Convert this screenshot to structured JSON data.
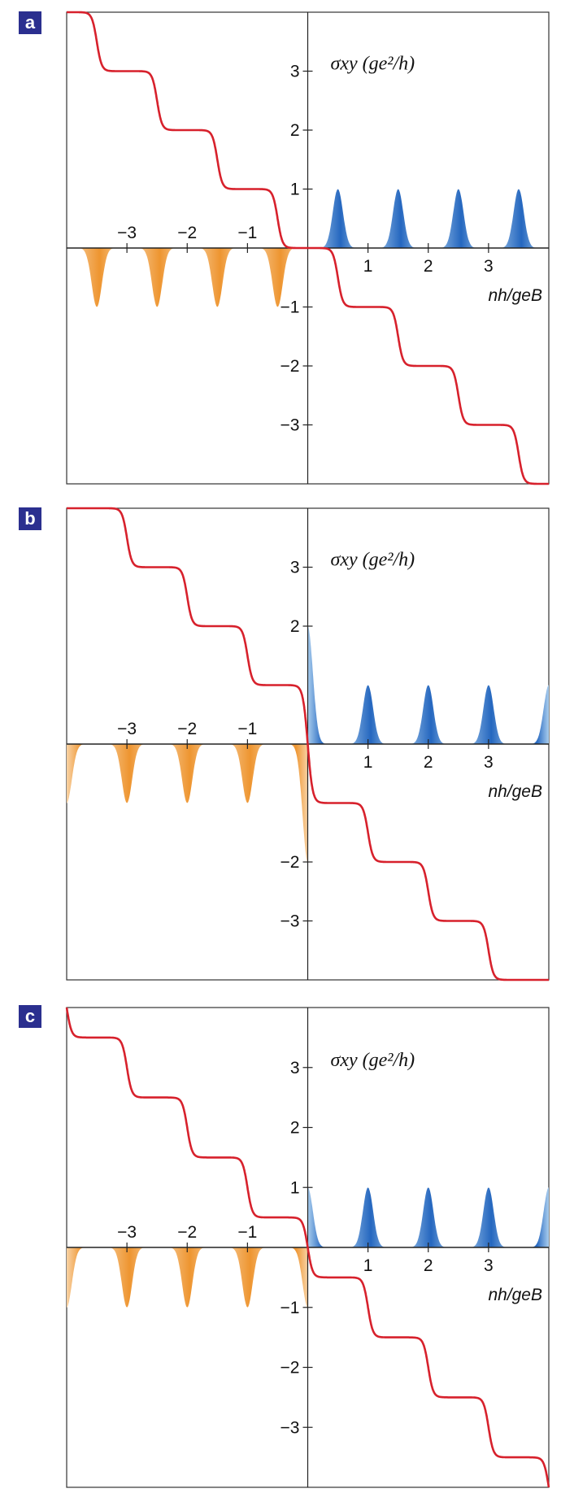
{
  "chart_data": [
    {
      "panel_label": "a",
      "type": "line",
      "ylabel": "σxy (ge²/h)",
      "xlabel": "nh/geB",
      "xlim": [
        -4,
        4
      ],
      "ylim": [
        -4,
        4
      ],
      "x_ticks": [
        "−3",
        "−2",
        "−1",
        "1",
        "2",
        "3"
      ],
      "y_ticks": [
        "3",
        "2",
        "1",
        "−1",
        "−2",
        "−3"
      ],
      "series": [
        {
          "kind": "hall-steps",
          "x": [
            -3.5,
            -2.5,
            -1.5,
            -0.5,
            0.5,
            1.5,
            2.5,
            3.5
          ],
          "plateaus": [
            4,
            3,
            2,
            1,
            0,
            -1,
            -2,
            -3,
            -4
          ],
          "color": "#d7212c"
        },
        {
          "kind": "dos-peaks-electron",
          "x": [
            0.5,
            1.5,
            2.5,
            3.5
          ],
          "heights": [
            1,
            1,
            1,
            1
          ],
          "color": "#2f78c8"
        },
        {
          "kind": "dos-peaks-hole",
          "x": [
            -3.5,
            -2.5,
            -1.5,
            -0.5
          ],
          "heights": [
            -1,
            -1,
            -1,
            -1
          ],
          "color": "#f0a040"
        }
      ]
    },
    {
      "panel_label": "b",
      "type": "line",
      "ylabel": "σxy (ge²/h)",
      "xlabel": "nh/geB",
      "xlim": [
        -4,
        4
      ],
      "ylim": [
        -4,
        4
      ],
      "x_ticks": [
        "−3",
        "−2",
        "−1",
        "1",
        "2",
        "3"
      ],
      "y_ticks": [
        "3",
        "2",
        "−2",
        "−3"
      ],
      "series": [
        {
          "kind": "hall-steps",
          "x": [
            -3,
            -2,
            -1,
            0,
            1,
            2,
            3
          ],
          "plateaus": [
            4,
            3,
            2,
            1,
            -1,
            -2,
            -3,
            -4
          ],
          "color": "#d7212c"
        },
        {
          "kind": "dos-peaks-electron",
          "x": [
            0,
            1,
            2,
            3,
            4
          ],
          "heights": [
            2,
            1,
            1,
            1,
            1
          ],
          "color": "#2f78c8"
        },
        {
          "kind": "dos-peaks-hole",
          "x": [
            -4,
            -3,
            -2,
            -1,
            0
          ],
          "heights": [
            -1,
            -1,
            -1,
            -1,
            -2
          ],
          "color": "#f0a040"
        }
      ]
    },
    {
      "panel_label": "c",
      "type": "line",
      "ylabel": "σxy (ge²/h)",
      "xlabel": "nh/geB",
      "xlim": [
        -4,
        4
      ],
      "ylim": [
        -4,
        4
      ],
      "x_ticks": [
        "−3",
        "−2",
        "−1",
        "1",
        "2",
        "3"
      ],
      "y_ticks": [
        "3",
        "2",
        "1",
        "−1",
        "−2",
        "−3"
      ],
      "series": [
        {
          "kind": "hall-steps",
          "x": [
            -4,
            -3,
            -2,
            -1,
            0,
            1,
            2,
            3,
            4
          ],
          "plateaus": [
            4.5,
            3.5,
            2.5,
            1.5,
            0.5,
            -0.5,
            -1.5,
            -2.5,
            -3.5,
            -4.5
          ],
          "color": "#d7212c"
        },
        {
          "kind": "dos-peaks-electron",
          "x": [
            0,
            1,
            2,
            3,
            4
          ],
          "heights": [
            1,
            1,
            1,
            1,
            1
          ],
          "color": "#2f78c8"
        },
        {
          "kind": "dos-peaks-hole",
          "x": [
            -4,
            -3,
            -2,
            -1,
            0
          ],
          "heights": [
            -1,
            -1,
            -1,
            -1,
            -1
          ],
          "color": "#f0a040"
        }
      ]
    }
  ]
}
